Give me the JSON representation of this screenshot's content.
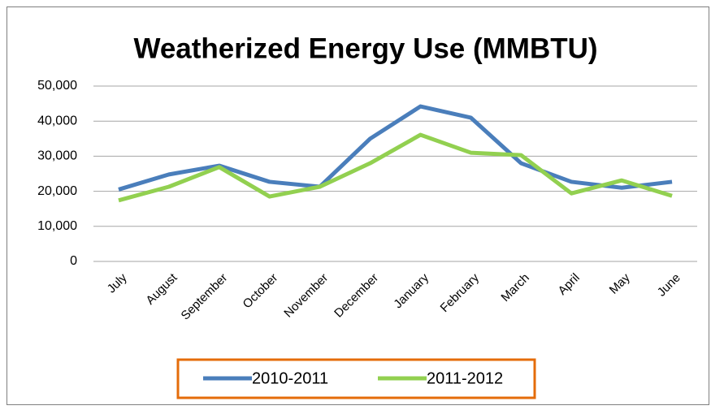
{
  "chart_data": {
    "type": "line",
    "title": "Weatherized Energy Use (MMBTU)",
    "categories": [
      "July",
      "August",
      "September",
      "October",
      "November",
      "December",
      "January",
      "February",
      "March",
      "April",
      "May",
      "June"
    ],
    "series": [
      {
        "name": "2010-2011",
        "color": "#4a7ebb",
        "values": [
          20500,
          24800,
          27300,
          22700,
          21300,
          35000,
          44200,
          41000,
          28000,
          22700,
          21000,
          22700
        ]
      },
      {
        "name": "2011-2012",
        "color": "#92d050",
        "values": [
          17400,
          21300,
          26900,
          18500,
          21300,
          28000,
          36100,
          31000,
          30300,
          19400,
          23100,
          18700
        ]
      }
    ],
    "ylim": [
      0,
      50000
    ],
    "yticks": [
      0,
      {
        "value": 10000,
        "label": "10,000"
      },
      {
        "value": 20000,
        "label": "20,000"
      },
      {
        "value": 30000,
        "label": "30,000"
      },
      {
        "value": 40000,
        "label": "40,000"
      },
      {
        "value": 50000,
        "label": "50,000"
      }
    ],
    "grid": true,
    "legend": "bottom"
  }
}
